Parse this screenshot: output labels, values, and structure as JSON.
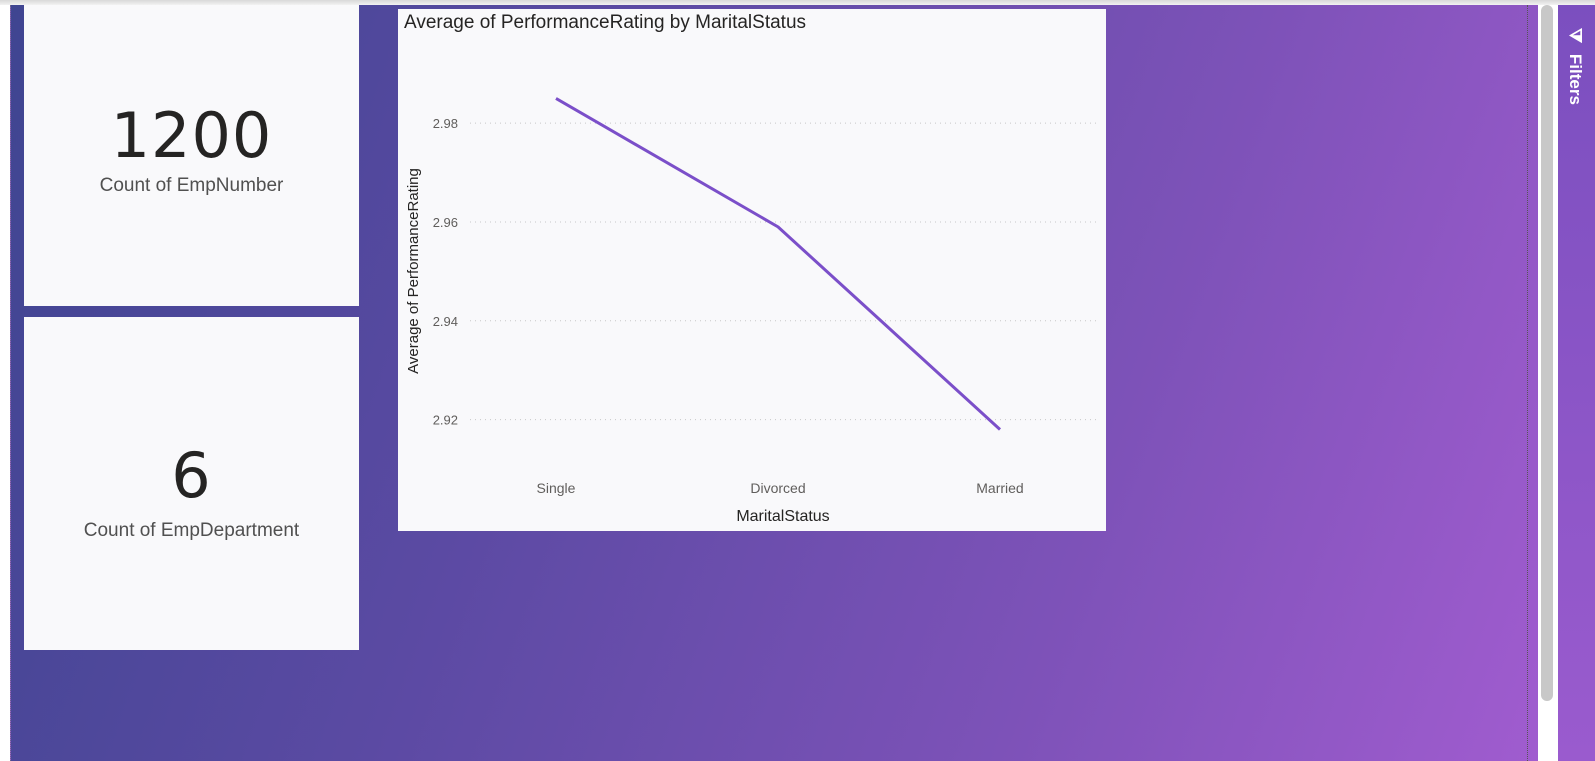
{
  "cards": [
    {
      "value": "1200",
      "label": "Count of EmpNumber"
    },
    {
      "value": "6",
      "label": "Count of EmpDepartment"
    }
  ],
  "filters_pane": {
    "label": "Filters",
    "icon": "filter-icon"
  },
  "colors": {
    "line": "#7b4fc9",
    "background_start": "#3f4591",
    "background_end": "#a05ccf"
  },
  "chart_data": {
    "type": "line",
    "title": "Average of PerformanceRating by MaritalStatus",
    "xlabel": "MaritalStatus",
    "ylabel": "Average of PerformanceRating",
    "categories": [
      "Single",
      "Divorced",
      "Married"
    ],
    "values": [
      2.985,
      2.959,
      2.918
    ],
    "yticks": [
      "2.98",
      "2.96",
      "2.94",
      "2.92"
    ],
    "ytick_values": [
      2.98,
      2.96,
      2.94,
      2.92
    ],
    "ylim": [
      2.91,
      2.995
    ],
    "grid": true
  }
}
